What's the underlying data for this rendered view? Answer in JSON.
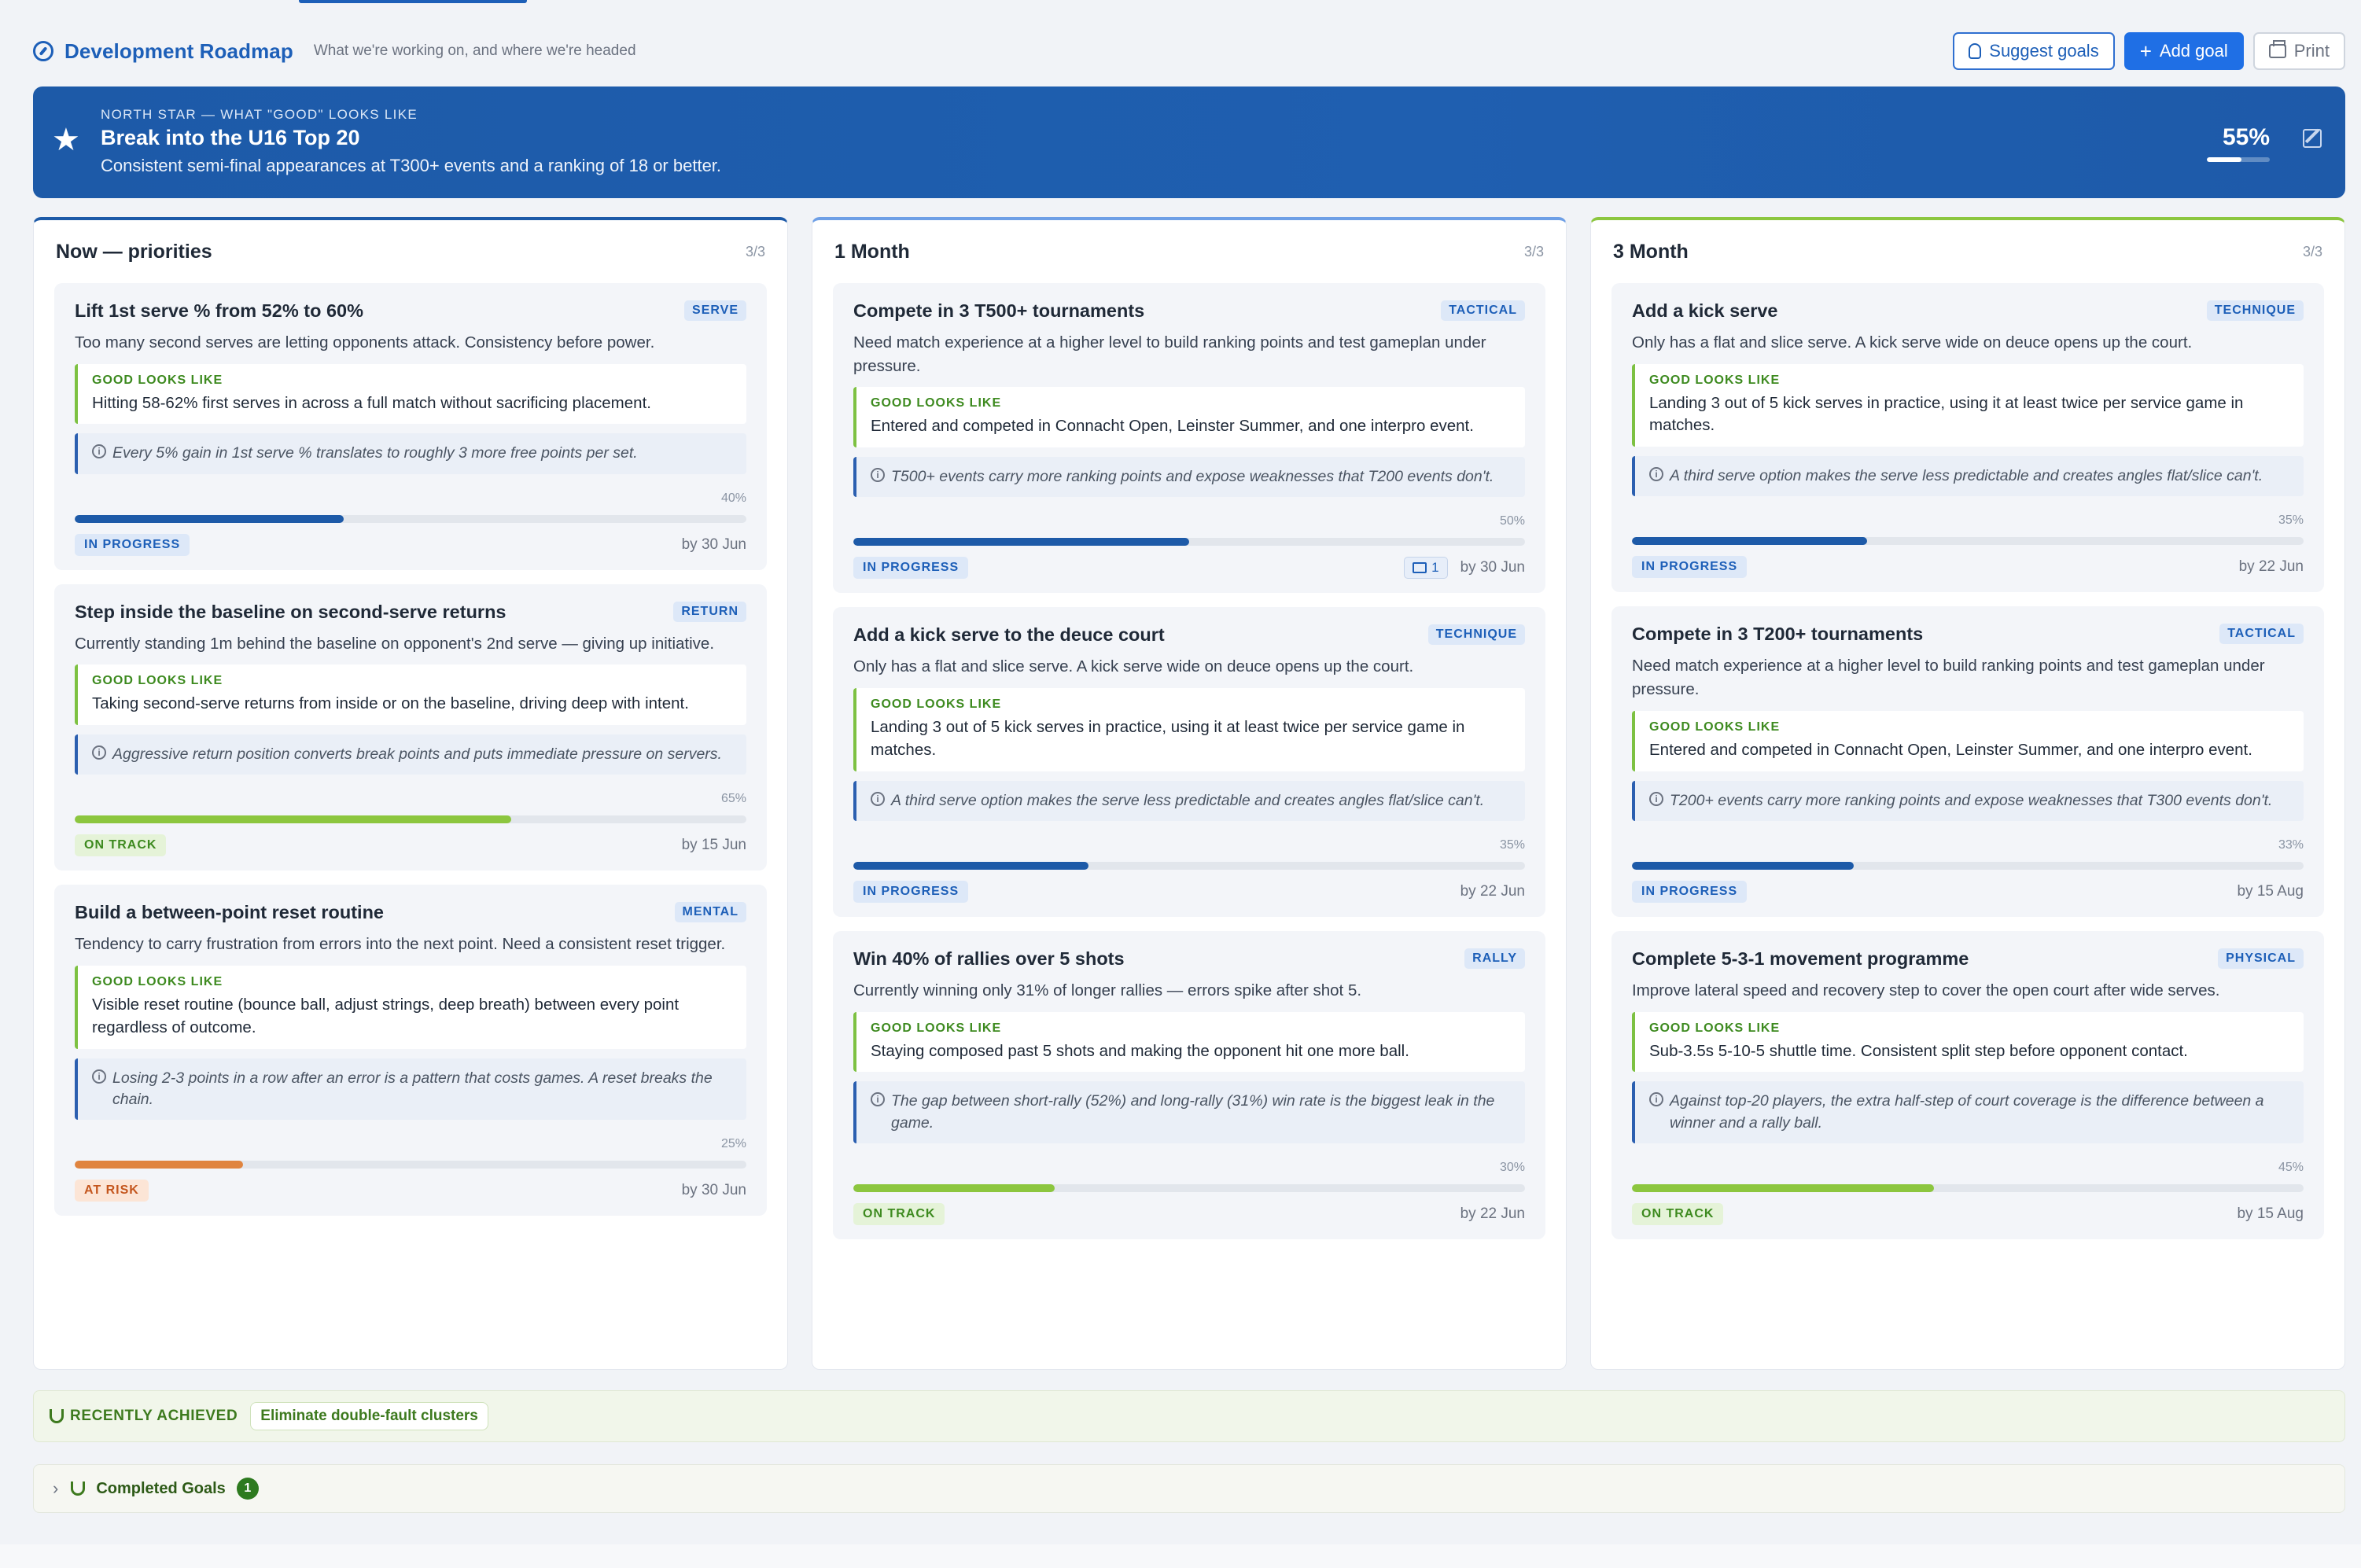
{
  "header": {
    "title": "Development Roadmap",
    "subtitle": "What we're working on, and where we're headed",
    "suggest_label": "Suggest goals",
    "add_label": "Add goal",
    "print_label": "Print"
  },
  "north_star": {
    "eyebrow": "NORTH STAR — WHAT \"GOOD\" LOOKS LIKE",
    "title": "Break into the U16 Top 20",
    "description": "Consistent semi-final appearances at T300+ events and a ranking of 18 or better.",
    "progress_label": "55%",
    "progress": 0.55
  },
  "columns": [
    {
      "title": "Now — priorities",
      "count": "3/3",
      "cards": [
        {
          "title": "Lift 1st serve % from 52% to 60%",
          "tag": "SERVE",
          "description": "Too many second serves are letting opponents attack. Consistency before power.",
          "good_label": "GOOD LOOKS LIKE",
          "good": "Hitting 58-62% first serves in across a full match without sacrificing placement.",
          "insight": "Every 5% gain in 1st serve % translates to roughly 3 more free points per set.",
          "pct_label": "40%",
          "progress": 0.4,
          "status": "IN PROGRESS",
          "due": "by 30 Jun"
        },
        {
          "title": "Step inside the baseline on second-serve returns",
          "tag": "RETURN",
          "description": "Currently standing 1m behind the baseline on opponent's 2nd serve — giving up initiative.",
          "good_label": "GOOD LOOKS LIKE",
          "good": "Taking second-serve returns from inside or on the baseline, driving deep with intent.",
          "insight": "Aggressive return position converts break points and puts immediate pressure on servers.",
          "pct_label": "65%",
          "progress": 0.65,
          "status": "ON TRACK",
          "due": "by 15 Jun"
        },
        {
          "title": "Build a between-point reset routine",
          "tag": "MENTAL",
          "description": "Tendency to carry frustration from errors into the next point. Need a consistent reset trigger.",
          "good_label": "GOOD LOOKS LIKE",
          "good": "Visible reset routine (bounce ball, adjust strings, deep breath) between every point regardless of outcome.",
          "insight": "Losing 2-3 points in a row after an error is a pattern that costs games. A reset breaks the chain.",
          "pct_label": "25%",
          "progress": 0.25,
          "status": "AT RISK",
          "due": "by 30 Jun"
        }
      ]
    },
    {
      "title": "1 Month",
      "count": "3/3",
      "cards": [
        {
          "title": "Compete in 3 T500+ tournaments",
          "tag": "TACTICAL",
          "description": "Need match experience at a higher level to build ranking points and test gameplan under pressure.",
          "good_label": "GOOD LOOKS LIKE",
          "good": "Entered and competed in Connacht Open, Leinster Summer, and one interpro event.",
          "insight": "T500+ events carry more ranking points and expose weaknesses that T200 events don't.",
          "pct_label": "50%",
          "progress": 0.5,
          "status": "IN PROGRESS",
          "comments": "1",
          "due": "by 30 Jun"
        },
        {
          "title": "Add a kick serve to the deuce court",
          "tag": "TECHNIQUE",
          "description": "Only has a flat and slice serve. A kick serve wide on deuce opens up the court.",
          "good_label": "GOOD LOOKS LIKE",
          "good": "Landing 3 out of 5 kick serves in practice, using it at least twice per service game in matches.",
          "insight": "A third serve option makes the serve less predictable and creates angles flat/slice can't.",
          "pct_label": "35%",
          "progress": 0.35,
          "status": "IN PROGRESS",
          "due": "by 22 Jun"
        },
        {
          "title": "Win 40% of rallies over 5 shots",
          "tag": "RALLY",
          "description": "Currently winning only 31% of longer rallies — errors spike after shot 5.",
          "good_label": "GOOD LOOKS LIKE",
          "good": "Staying composed past 5 shots and making the opponent hit one more ball.",
          "insight": "The gap between short-rally (52%) and long-rally (31%) win rate is the biggest leak in the game.",
          "pct_label": "30%",
          "progress": 0.3,
          "status": "ON TRACK",
          "due": "by 22 Jun"
        }
      ]
    },
    {
      "title": "3 Month",
      "count": "3/3",
      "cards": [
        {
          "title": "Add a kick serve",
          "tag": "TECHNIQUE",
          "description": "Only has a flat and slice serve. A kick serve wide on deuce opens up the court.",
          "good_label": "GOOD LOOKS LIKE",
          "good": "Landing 3 out of 5 kick serves in practice, using it at least twice per service game in matches.",
          "insight": "A third serve option makes the serve less predictable and creates angles flat/slice can't.",
          "pct_label": "35%",
          "progress": 0.35,
          "status": "IN PROGRESS",
          "due": "by 22 Jun"
        },
        {
          "title": "Compete in 3 T200+ tournaments",
          "tag": "TACTICAL",
          "description": "Need match experience at a higher level to build ranking points and test gameplan under pressure.",
          "good_label": "GOOD LOOKS LIKE",
          "good": "Entered and competed in Connacht Open, Leinster Summer, and one interpro event.",
          "insight": "T200+ events carry more ranking points and expose weaknesses that T300 events don't.",
          "pct_label": "33%",
          "progress": 0.33,
          "status": "IN PROGRESS",
          "due": "by 15 Aug"
        },
        {
          "title": "Complete 5-3-1 movement programme",
          "tag": "PHYSICAL",
          "description": "Improve lateral speed and recovery step to cover the open court after wide serves.",
          "good_label": "GOOD LOOKS LIKE",
          "good": "Sub-3.5s 5-10-5 shuttle time. Consistent split step before opponent contact.",
          "insight": "Against top-20 players, the extra half-step of court coverage is the difference between a winner and a rally ball.",
          "pct_label": "45%",
          "progress": 0.45,
          "status": "ON TRACK",
          "due": "by 15 Aug"
        }
      ]
    }
  ],
  "achieved": {
    "label": "RECENTLY ACHIEVED",
    "item": "Eliminate double-fault clusters"
  },
  "completed": {
    "label": "Completed Goals",
    "count": "1"
  },
  "colors": {
    "brand": "#1d5fb8",
    "in_progress": "#1d5aa8",
    "on_track": "#8cc63f",
    "at_risk": "#e0843f"
  }
}
